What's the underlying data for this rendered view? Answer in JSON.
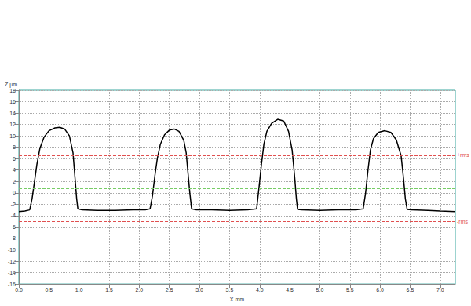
{
  "chart_data": {
    "type": "line",
    "x_label": "X mm",
    "y_label": "Z µm",
    "grid": true,
    "xlim": [
      0,
      7.25
    ],
    "xticks": [
      {
        "value": 0,
        "label": "0.0"
      },
      {
        "value": 0.5,
        "label": "0.5"
      },
      {
        "value": 1,
        "label": "1.0"
      },
      {
        "value": 1.5,
        "label": "1.5"
      },
      {
        "value": 2,
        "label": "2.0"
      },
      {
        "value": 2.5,
        "label": "2.5"
      },
      {
        "value": 3,
        "label": "3.0"
      },
      {
        "value": 3.5,
        "label": "3.5"
      },
      {
        "value": 4,
        "label": "4.0"
      },
      {
        "value": 4.5,
        "label": "4.5"
      },
      {
        "value": 5,
        "label": "5.0"
      },
      {
        "value": 5.5,
        "label": "5.5"
      },
      {
        "value": 6,
        "label": "6.0"
      },
      {
        "value": 6.5,
        "label": "6.5"
      },
      {
        "value": 7,
        "label": "7.0"
      }
    ],
    "ylim": [
      -16,
      18
    ],
    "yticks": [
      -16,
      -14,
      -12,
      -10,
      -8,
      -6,
      -4,
      -2,
      0,
      2,
      4,
      6,
      8,
      10,
      12,
      14,
      16,
      18
    ],
    "series": [
      {
        "color": "#000000",
        "line_style": "solid",
        "x": [
          0,
          0.1,
          0.18,
          0.22,
          0.26,
          0.3,
          0.35,
          0.42,
          0.5,
          0.6,
          0.68,
          0.76,
          0.84,
          0.9,
          0.93,
          0.96,
          0.98,
          1.05,
          1.3,
          1.6,
          1.9,
          2.1,
          2.18,
          2.22,
          2.26,
          2.3,
          2.35,
          2.42,
          2.5,
          2.58,
          2.66,
          2.74,
          2.78,
          2.81,
          2.84,
          2.87,
          2.95,
          3.2,
          3.5,
          3.8,
          3.95,
          3.99,
          4.03,
          4.07,
          4.12,
          4.2,
          4.3,
          4.4,
          4.48,
          4.54,
          4.58,
          4.61,
          4.63,
          4.7,
          5.0,
          5.3,
          5.6,
          5.72,
          5.76,
          5.8,
          5.84,
          5.89,
          5.97,
          6.08,
          6.18,
          6.27,
          6.35,
          6.39,
          6.42,
          6.45,
          6.52,
          6.8,
          7.0,
          7.25
        ],
        "values": [
          -3.3,
          -3.2,
          -3.0,
          -1.0,
          2.0,
          5.0,
          7.8,
          9.8,
          10.9,
          11.4,
          11.5,
          11.2,
          10.0,
          7.0,
          3.0,
          -1.0,
          -2.8,
          -3.0,
          -3.1,
          -3.1,
          -3.0,
          -3.0,
          -2.8,
          -0.5,
          3.0,
          6.0,
          8.5,
          10.2,
          11.0,
          11.2,
          10.8,
          9.2,
          7.0,
          3.5,
          0.0,
          -2.8,
          -3.0,
          -3.0,
          -3.1,
          -3.0,
          -2.8,
          1.0,
          5.0,
          8.5,
          10.8,
          12.2,
          12.9,
          12.6,
          10.8,
          7.5,
          3.0,
          -1.0,
          -2.9,
          -3.0,
          -3.1,
          -3.0,
          -3.0,
          -2.8,
          0.0,
          4.0,
          7.5,
          9.5,
          10.6,
          10.9,
          10.6,
          9.3,
          6.5,
          2.5,
          -1.0,
          -2.9,
          -3.0,
          -3.1,
          -3.2,
          -3.3
        ]
      }
    ],
    "reference_lines": [
      {
        "label": "+rms",
        "value": 6.6,
        "color": "#e05050",
        "line_style": "dashed"
      },
      {
        "value": 0.8,
        "color": "#77cc66",
        "line_style": "dashed"
      },
      {
        "label": "-rms",
        "value": -5.0,
        "color": "#e05050",
        "line_style": "dashed"
      }
    ]
  }
}
